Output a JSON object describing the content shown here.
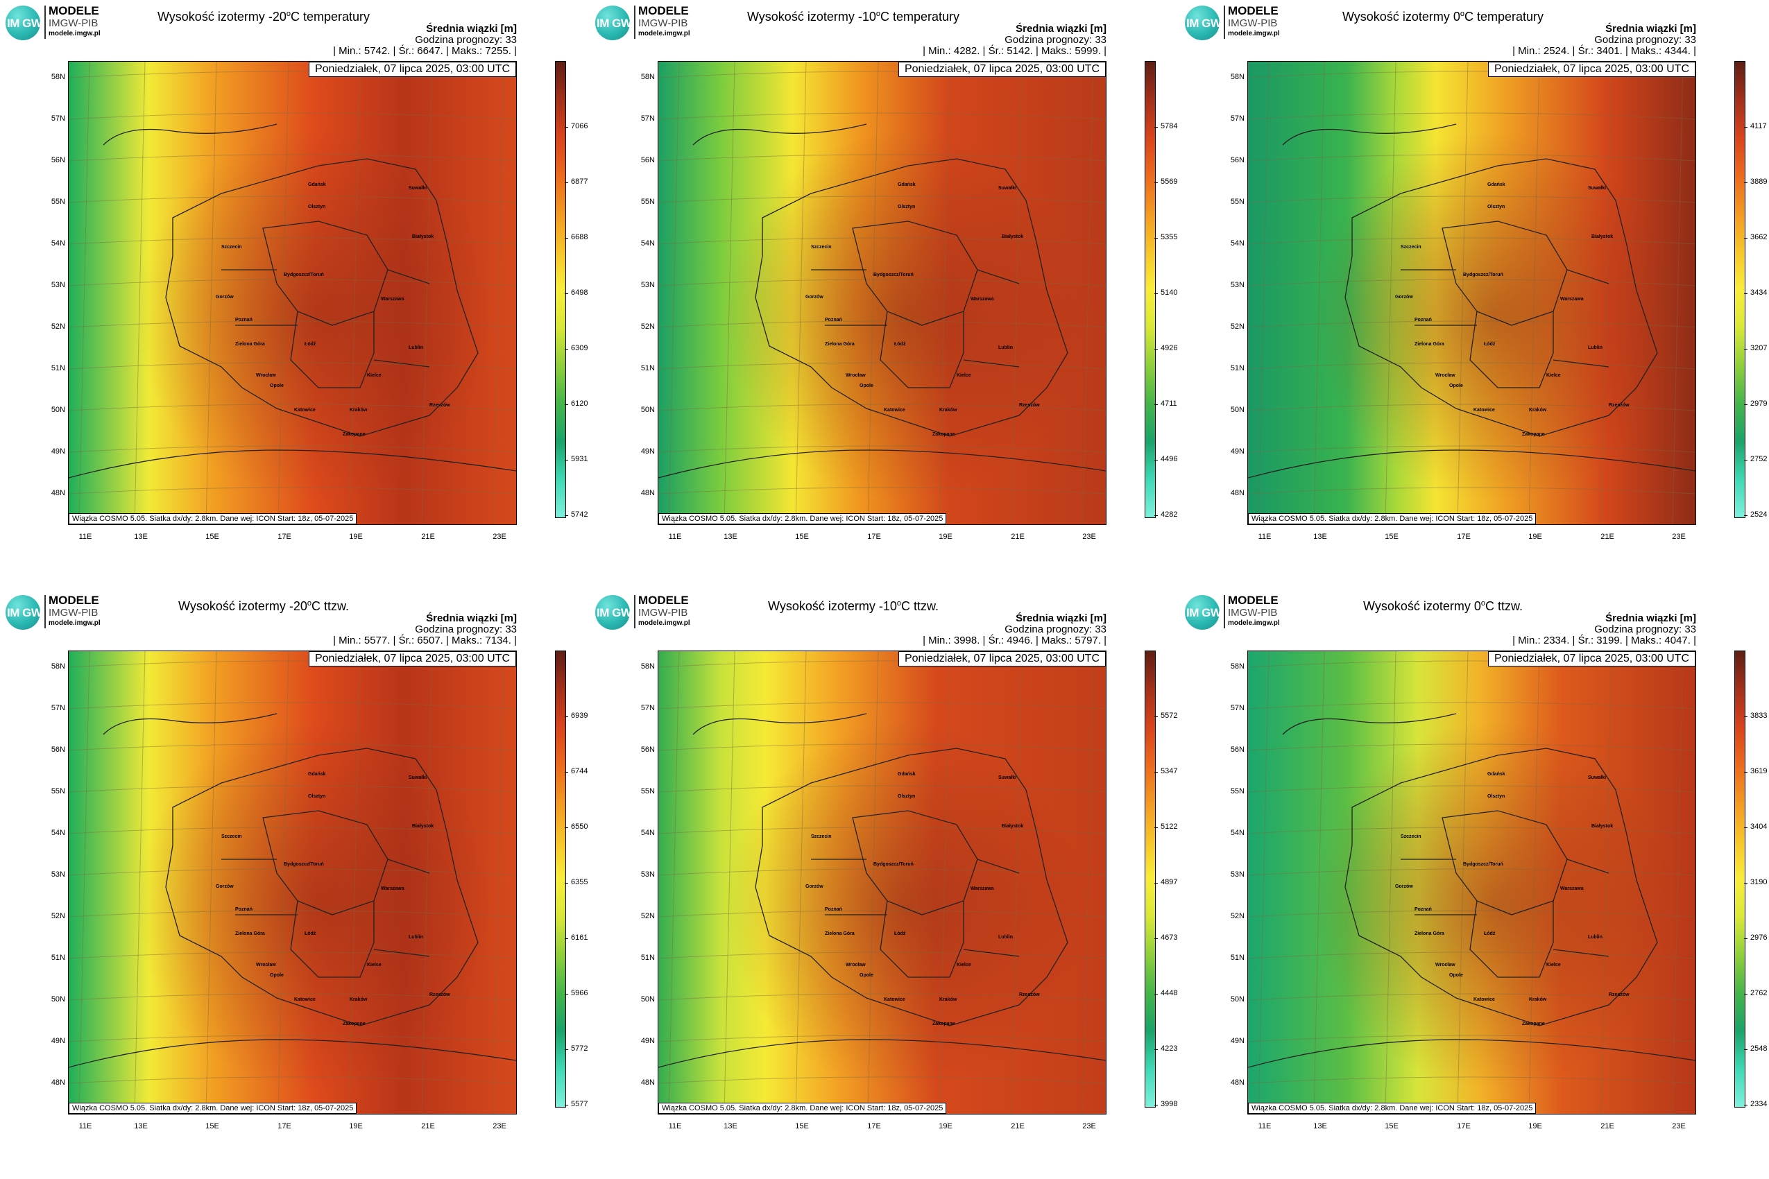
{
  "logo": {
    "circle_text": "IM GW",
    "brand": "MODELE",
    "org": "IMGW-PIB",
    "url": "modele.imgw.pl"
  },
  "common": {
    "info_label": "Średnia wiązki [m]",
    "forecast_hour": "Godzina prognozy: 33",
    "date": "Poniedziałek, 07 lipca 2025, 03:00 UTC",
    "footer": "Wiązka COSMO 5.05. Siatka dx/dy: 2.8km. Dane wej: ICON Start: 18z, 05-07-2025",
    "lat_labels": [
      "58N",
      "57N",
      "56N",
      "55N",
      "54N",
      "53N",
      "52N",
      "51N",
      "50N",
      "49N",
      "48N"
    ],
    "lon_labels": [
      "11E",
      "13E",
      "15E",
      "17E",
      "19E",
      "21E",
      "23E"
    ],
    "cities": [
      "Gdańsk",
      "Olsztyn",
      "Suwałki",
      "Szczecin",
      "Białystok",
      "Bydgoszcz/Toruń",
      "Gorzów",
      "Warszawa",
      "Poznań",
      "Zielona Góra",
      "Łódź",
      "Lublin",
      "Wrocław",
      "Kielce",
      "Opole",
      "Katowice",
      "Kraków",
      "Rzeszów",
      "Zakopane"
    ]
  },
  "panels": [
    {
      "title": "Wysokość izotermy -20°C temperatury",
      "title_pre": "Wysokość izotermy -20",
      "title_sup": "o",
      "title_post": "C temperatury",
      "stats": "| Min.: 5742. | Śr.: 6647. | Maks.: 7255. |",
      "colorbar": [
        "7066",
        "6877",
        "6688",
        "6498",
        "6309",
        "6120",
        "5931",
        "5742"
      ],
      "palette": "warm"
    },
    {
      "title": "Wysokość izotermy -10°C temperatury",
      "title_pre": "Wysokość izotermy -10",
      "title_sup": "o",
      "title_post": "C temperatury",
      "stats": "| Min.: 4282. | Śr.: 5142. | Maks.: 5999. |",
      "colorbar": [
        "5784",
        "5569",
        "5355",
        "5140",
        "4926",
        "4711",
        "4496",
        "4282"
      ],
      "palette": "mid"
    },
    {
      "title": "Wysokość izotermy 0°C temperatury",
      "title_pre": "Wysokość izotermy 0",
      "title_sup": "o",
      "title_post": "C temperatury",
      "stats": "| Min.: 2524. | Śr.: 3401. | Maks.: 4344. |",
      "colorbar": [
        "4117",
        "3889",
        "3662",
        "3434",
        "3207",
        "2979",
        "2752",
        "2524"
      ],
      "palette": "cool"
    },
    {
      "title": "Wysokość izotermy -20°C ttzw.",
      "title_pre": "Wysokość izotermy -20",
      "title_sup": "o",
      "title_post": "C ttzw.",
      "stats": "| Min.: 5577. | Śr.: 6507. | Maks.: 7134. |",
      "colorbar": [
        "6939",
        "6744",
        "6550",
        "6355",
        "6161",
        "5966",
        "5772",
        "5577"
      ],
      "palette": "warm"
    },
    {
      "title": "Wysokość izotermy -10°C ttzw.",
      "title_pre": "Wysokość izotermy -10",
      "title_sup": "o",
      "title_post": "C ttzw.",
      "stats": "| Min.: 3998. | Śr.: 4946. | Maks.: 5797. |",
      "colorbar": [
        "5572",
        "5347",
        "5122",
        "4897",
        "4673",
        "4448",
        "4223",
        "3998"
      ],
      "palette": "hot"
    },
    {
      "title": "Wysokość izotermy 0°C ttzw.",
      "title_pre": "Wysokość izotermy 0",
      "title_sup": "o",
      "title_post": "C ttzw.",
      "stats": "| Min.: 2334. | Śr.: 3199. | Maks.: 4047. |",
      "colorbar": [
        "3833",
        "3619",
        "3404",
        "3190",
        "2976",
        "2762",
        "2548",
        "2334"
      ],
      "palette": "mix"
    }
  ],
  "colors": {
    "colorbar_stops": [
      "#5f1f14",
      "#a3301a",
      "#d9441c",
      "#ec6a1d",
      "#f39a22",
      "#f7c62a",
      "#f9ed3a",
      "#d9e838",
      "#8fcf3b",
      "#45b54a",
      "#1aa36a",
      "#3fd9b6",
      "#7ff0dd"
    ]
  }
}
